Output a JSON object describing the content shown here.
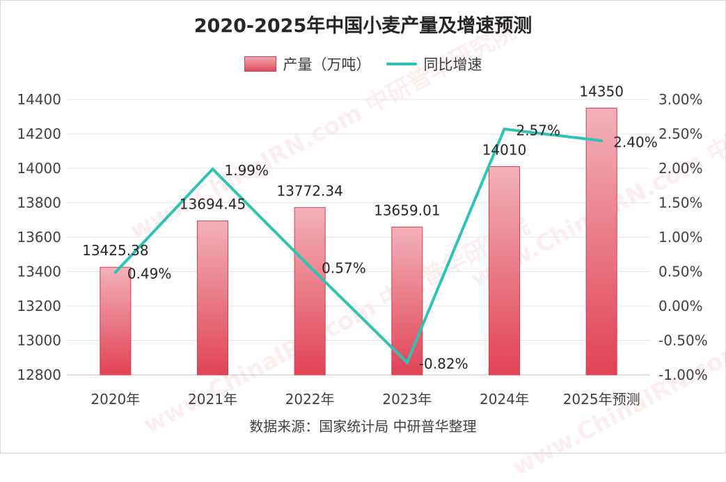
{
  "watermark": "www.ChinaIRN.com 中研普华研究院",
  "chart_data": {
    "type": "bar",
    "title": "2020-2025年中国小麦产量及增速预测",
    "categories": [
      "2020年",
      "2021年",
      "2022年",
      "2023年",
      "2024年",
      "2025年预测"
    ],
    "series": [
      {
        "name": "产量（万吨）",
        "type": "bar",
        "axis": "left",
        "values": [
          13425.38,
          13694.45,
          13772.34,
          13659.01,
          14010,
          14350
        ],
        "labels": [
          "13425.38",
          "13694.45",
          "13772.34",
          "13659.01",
          "14010",
          "14350"
        ],
        "color": "#e04a5c"
      },
      {
        "name": "同比增速",
        "type": "line",
        "axis": "right",
        "values": [
          0.49,
          1.99,
          0.57,
          -0.82,
          2.57,
          2.4
        ],
        "labels": [
          "0.49%",
          "1.99%",
          "0.57%",
          "-0.82%",
          "2.57%",
          "2.40%"
        ],
        "color": "#2ec2b2"
      }
    ],
    "y_left": {
      "range": [
        12800,
        14400
      ],
      "ticks": [
        "12800",
        "13000",
        "13200",
        "13400",
        "13600",
        "13800",
        "14000",
        "14200",
        "14400"
      ]
    },
    "y_right": {
      "range": [
        -1.0,
        3.0
      ],
      "ticks": [
        "-1.00%",
        "-0.50%",
        "0.00%",
        "0.50%",
        "1.00%",
        "1.50%",
        "2.00%",
        "2.50%",
        "3.00%"
      ]
    },
    "grid": true,
    "legend_position": "top-center"
  },
  "source": "数据来源：国家统计局 中研普华整理"
}
